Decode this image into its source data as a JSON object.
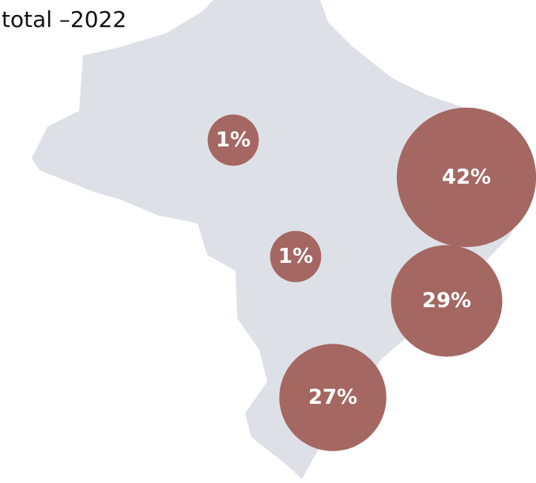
{
  "subtitle": "total –2022",
  "bubbles": {
    "color": "#a56762",
    "values": [
      1,
      1,
      42,
      29,
      27
    ],
    "value_labels": [
      "1%",
      "1%",
      "42%",
      "29%",
      "27%"
    ]
  }
}
